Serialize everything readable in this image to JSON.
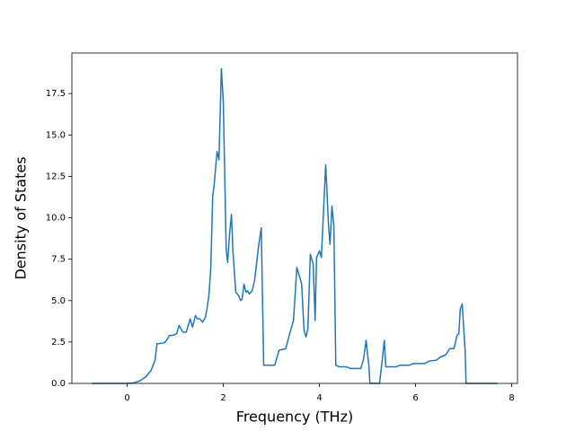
{
  "chart_data": {
    "type": "line",
    "xlabel": "Frequency (THz)",
    "ylabel": "Density of States",
    "x": [
      -0.73,
      0,
      0.13,
      0.26,
      0.39,
      0.5,
      0.58,
      0.62,
      0.65,
      0.77,
      0.82,
      0.88,
      0.95,
      1.03,
      1.08,
      1.16,
      1.23,
      1.31,
      1.36,
      1.42,
      1.46,
      1.51,
      1.57,
      1.63,
      1.66,
      1.7,
      1.74,
      1.78,
      1.81,
      1.87,
      1.91,
      1.96,
      2.0,
      2.06,
      2.09,
      2.13,
      2.17,
      2.2,
      2.26,
      2.32,
      2.36,
      2.39,
      2.43,
      2.47,
      2.5,
      2.54,
      2.6,
      2.65,
      2.73,
      2.79,
      2.84,
      3.07,
      3.16,
      3.3,
      3.38,
      3.46,
      3.53,
      3.63,
      3.68,
      3.72,
      3.76,
      3.81,
      3.87,
      3.91,
      3.94,
      4.0,
      4.04,
      4.13,
      4.19,
      4.22,
      4.26,
      4.3,
      4.34,
      4.41,
      4.56,
      4.65,
      4.86,
      4.92,
      4.97,
      5.03,
      5.05,
      5.25,
      5.31,
      5.35,
      5.38,
      5.59,
      5.68,
      5.87,
      5.96,
      6.19,
      6.28,
      6.43,
      6.52,
      6.62,
      6.71,
      6.8,
      6.86,
      6.9,
      6.93,
      6.97,
      7.03,
      7.05,
      7.7
    ],
    "series": [
      {
        "color": "#1f77b4",
        "values": [
          0,
          0,
          0.03,
          0.15,
          0.4,
          0.8,
          1.4,
          2.4,
          2.4,
          2.45,
          2.6,
          2.9,
          2.9,
          3.0,
          3.5,
          3.1,
          3.1,
          3.9,
          3.4,
          4.1,
          3.9,
          3.9,
          3.7,
          4.0,
          4.5,
          5.3,
          7.0,
          11.3,
          12.0,
          14.0,
          13.5,
          19.0,
          17.0,
          8.1,
          7.3,
          9.0,
          10.2,
          8.0,
          5.5,
          5.3,
          5.0,
          5.1,
          6.0,
          5.5,
          5.6,
          5.4,
          5.6,
          6.2,
          8.2,
          9.4,
          1.1,
          1.1,
          2.0,
          2.1,
          3.0,
          3.8,
          7.0,
          6.0,
          3.2,
          2.8,
          3.3,
          7.8,
          7.2,
          3.8,
          7.6,
          8.0,
          7.6,
          13.2,
          9.5,
          8.4,
          10.7,
          9.5,
          1.1,
          1.0,
          1.0,
          0.9,
          0.9,
          1.5,
          2.6,
          1.0,
          0,
          0,
          1.5,
          2.6,
          1.0,
          1.0,
          1.1,
          1.1,
          1.2,
          1.2,
          1.35,
          1.4,
          1.6,
          1.7,
          2.1,
          2.1,
          2.9,
          3.0,
          4.5,
          4.8,
          2.0,
          0,
          0
        ]
      }
    ],
    "xlim": [
      -1.15,
      8.12
    ],
    "xticks": [
      0,
      2,
      4,
      6,
      8
    ],
    "ylim": [
      0,
      19.95
    ],
    "yticks": [
      {
        "value": 0,
        "label": "0.0"
      },
      {
        "value": 2.5,
        "label": "2.5"
      },
      {
        "value": 5,
        "label": "5.0"
      },
      {
        "value": 7.5,
        "label": "7.5"
      },
      {
        "value": 10,
        "label": "10.0"
      },
      {
        "value": 12.5,
        "label": "12.5"
      },
      {
        "value": 15,
        "label": "15.0"
      },
      {
        "value": 17.5,
        "label": "17.5"
      }
    ]
  }
}
